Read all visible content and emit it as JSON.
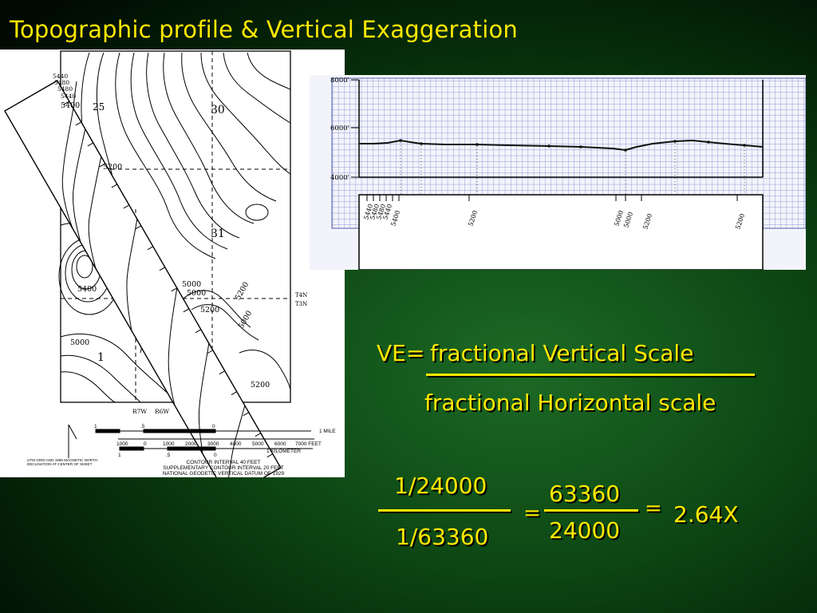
{
  "slide": {
    "title": "Topographic profile & Vertical Exaggeration"
  },
  "map": {
    "contour_labels": [
      "5440",
      "5480",
      "5480",
      "5440",
      "5400",
      "5200",
      "5400",
      "5000",
      "5000",
      "5000",
      "5200",
      "5200",
      "5200",
      "5000"
    ],
    "section_numbers": [
      "25",
      "30",
      "31",
      "1"
    ],
    "township_labels": [
      "T4N",
      "T3N"
    ],
    "range_labels": [
      "R7W",
      "R6W"
    ],
    "scale_mile": [
      "1",
      ".5",
      "0",
      "1 MILE"
    ],
    "scale_feet": [
      "1000",
      "0",
      "1000",
      "2000",
      "3000",
      "4000",
      "5000",
      "6000",
      "7000 FEET"
    ],
    "scale_km": [
      "1",
      ".5",
      "0",
      "1 KILOMETER"
    ],
    "declination_note": "UTM GRID AND 1985 MAGNETIC NORTH DECLINATION AT CENTER OF SHEET",
    "contour_interval_note": "CONTOUR INTERVAL 40 FEET",
    "supplementary_note": "SUPPLEMENTARY CONTOUR INTERVAL 20 FEET",
    "datum_note": "NATIONAL GEODETIC VERTICAL DATUM OF 1929"
  },
  "profile": {
    "y_axis_labels": [
      "8000'",
      "6000'",
      "4000'"
    ],
    "strip_labels": [
      "5440",
      "5480",
      "5480",
      "5440",
      "5400",
      "5200",
      "5000",
      "5000",
      "5200",
      "5200"
    ]
  },
  "formula": {
    "ve_prefix": "VE=",
    "numerator_label": "fractional Vertical Scale",
    "denominator_label": "fractional Horizontal scale",
    "ratio1_top": "1/24000",
    "ratio1_bottom": "1/63360",
    "equals1": "=",
    "ratio2_top": "63360",
    "ratio2_bottom": "24000",
    "equals2": "=",
    "result": "2.64X"
  }
}
